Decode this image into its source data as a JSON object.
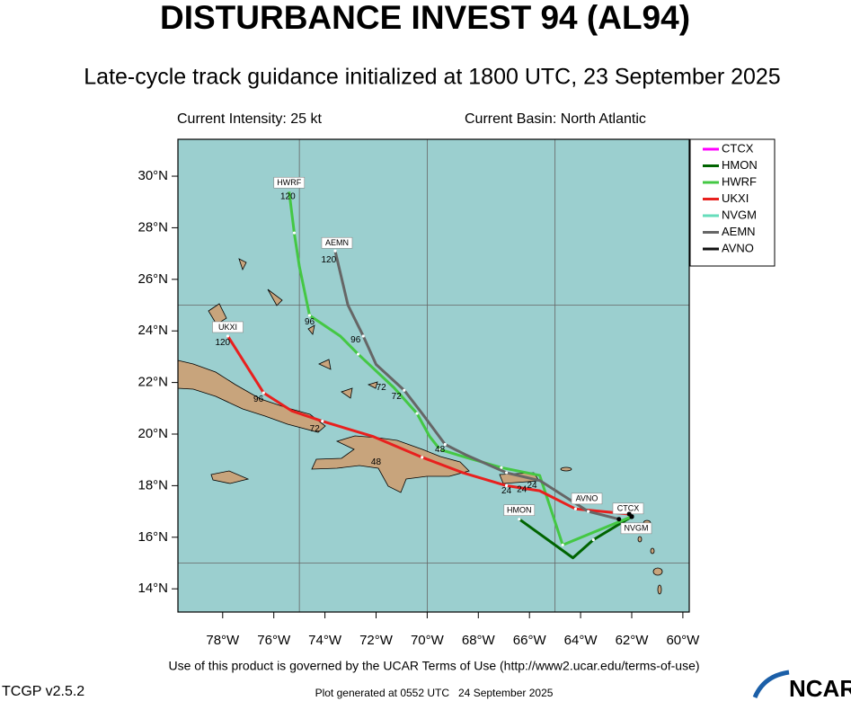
{
  "chart_data": {
    "type": "map",
    "title": "DISTURBANCE INVEST 94 (AL94)",
    "subtitle": "Late-cycle track guidance initialized at 1800 UTC, 23 September 2025",
    "xlim": [
      -79.75,
      -59.75
    ],
    "ylim": [
      13.1,
      31.43
    ],
    "xticks": [
      {
        "value": -78,
        "label": "78°W"
      },
      {
        "value": -76,
        "label": "76°W"
      },
      {
        "value": -74,
        "label": "74°W"
      },
      {
        "value": -72,
        "label": "72°W"
      },
      {
        "value": -70,
        "label": "70°W"
      },
      {
        "value": -68,
        "label": "68°W"
      },
      {
        "value": -66,
        "label": "66°W"
      },
      {
        "value": -64,
        "label": "64°W"
      },
      {
        "value": -62,
        "label": "62°W"
      },
      {
        "value": -60,
        "label": "60°W"
      }
    ],
    "yticks": [
      {
        "value": 14,
        "label": "14°N"
      },
      {
        "value": 16,
        "label": "16°N"
      },
      {
        "value": 18,
        "label": "18°N"
      },
      {
        "value": 20,
        "label": "20°N"
      },
      {
        "value": 22,
        "label": "22°N"
      },
      {
        "value": 24,
        "label": "24°N"
      },
      {
        "value": 26,
        "label": "26°N"
      },
      {
        "value": 28,
        "label": "28°N"
      },
      {
        "value": 30,
        "label": "30°N"
      }
    ],
    "grid_lon": [
      -75,
      -70,
      -65
    ],
    "grid_lat": [
      25,
      15
    ],
    "legend": "upper right",
    "series": [
      {
        "name": "CTCX",
        "color": "#ff00ff",
        "x": [
          -62.0
        ],
        "values": [
          16.8
        ]
      },
      {
        "name": "HMON",
        "color": "#006400",
        "x": [
          -62.0,
          -63.5,
          -64.3,
          -66.4
        ],
        "values": [
          16.8,
          15.9,
          15.2,
          16.7
        ]
      },
      {
        "name": "HWRF",
        "color": "#44c844",
        "x": [
          -62.0,
          -64.7,
          -65.6,
          -67.1,
          -68.5,
          -69.5,
          -69.9,
          -70.4,
          -71.3,
          -72.7,
          -73.4,
          -74.6,
          -75.0,
          -75.2,
          -75.4
        ],
        "values": [
          16.8,
          15.7,
          18.4,
          18.7,
          19.1,
          19.4,
          19.9,
          20.8,
          21.8,
          23.1,
          23.8,
          24.6,
          26.5,
          27.8,
          29.4
        ]
      },
      {
        "name": "UKXI",
        "color": "#e8201e",
        "x": [
          -62.1,
          -64.2,
          -65.6,
          -66.9,
          -68.6,
          -70.2,
          -72.1,
          -74.1,
          -75.3,
          -76.4,
          -77.1,
          -77.8
        ],
        "values": [
          16.9,
          17.1,
          17.8,
          18.0,
          18.5,
          19.1,
          19.9,
          20.5,
          20.9,
          21.6,
          22.7,
          23.8
        ]
      },
      {
        "name": "NVGM",
        "color": "#66ddbb",
        "x": [
          -62.0
        ],
        "values": [
          16.8
        ]
      },
      {
        "name": "AEMN",
        "color": "#666666",
        "x": [
          -62.5,
          -63.7,
          -65.6,
          -66.9,
          -68.5,
          -69.3,
          -70.2,
          -70.9,
          -72.0,
          -72.5,
          -73.1,
          -73.6
        ],
        "values": [
          16.7,
          17.0,
          18.2,
          18.5,
          19.2,
          19.6,
          20.8,
          21.7,
          22.7,
          23.8,
          25.0,
          27.1
        ]
      },
      {
        "name": "AVNO",
        "color": "#111111",
        "x": [
          -62.0
        ],
        "values": [
          16.8
        ]
      }
    ],
    "annotations": [
      {
        "text": "120",
        "x": -75.45,
        "y": 29.2
      },
      {
        "text": "120",
        "x": -73.85,
        "y": 26.75
      },
      {
        "text": "120",
        "x": -78.0,
        "y": 23.55
      },
      {
        "text": "96",
        "x": -74.6,
        "y": 24.35
      },
      {
        "text": "96",
        "x": -72.8,
        "y": 23.65
      },
      {
        "text": "96",
        "x": -76.6,
        "y": 21.35
      },
      {
        "text": "72",
        "x": -71.8,
        "y": 21.8
      },
      {
        "text": "72",
        "x": -71.2,
        "y": 21.45
      },
      {
        "text": "72",
        "x": -74.4,
        "y": 20.2
      },
      {
        "text": "48",
        "x": -69.5,
        "y": 19.4
      },
      {
        "text": "48",
        "x": -72.0,
        "y": 18.9
      },
      {
        "text": "24",
        "x": -66.9,
        "y": 17.8
      },
      {
        "text": "24",
        "x": -66.3,
        "y": 17.85
      },
      {
        "text": "24",
        "x": -65.9,
        "y": 18.0
      }
    ]
  },
  "header": {
    "intensity": "Current Intensity: 25 kt",
    "basin": "Current Basin: North Atlantic"
  },
  "footer": {
    "terms": "Use of this product is governed by the UCAR Terms of Use (http://www2.ucar.edu/terms-of-use)",
    "version": "TCGP v2.5.2",
    "generated": "Plot generated at 0552 UTC   24 September 2025",
    "logo": "NCAR"
  }
}
